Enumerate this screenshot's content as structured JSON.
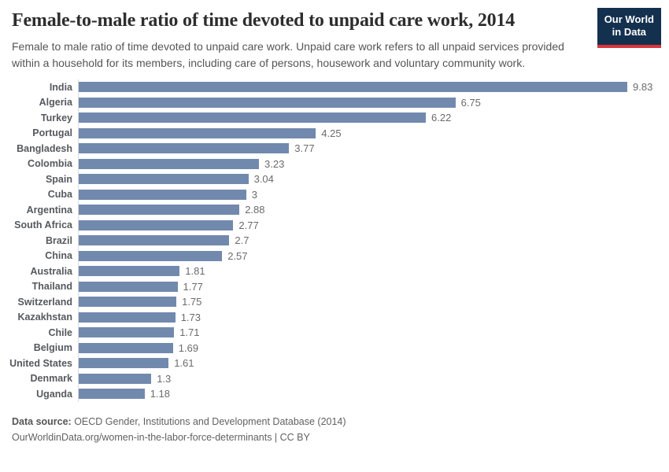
{
  "header": {
    "title": "Female-to-male ratio of time devoted to unpaid care work, 2014",
    "subtitle": "Female to male ratio of time devoted to unpaid care work. Unpaid care work refers to all unpaid services provided within a household for its members, including care of persons, housework and voluntary community work.",
    "logo": {
      "line1": "Our World",
      "line2": "in Data"
    }
  },
  "chart_data": {
    "type": "bar",
    "orientation": "horizontal",
    "title": "Female-to-male ratio of time devoted to unpaid care work, 2014",
    "categories": [
      "India",
      "Algeria",
      "Turkey",
      "Portugal",
      "Bangladesh",
      "Colombia",
      "Spain",
      "Cuba",
      "Argentina",
      "South Africa",
      "Brazil",
      "China",
      "Australia",
      "Thailand",
      "Switzerland",
      "Kazakhstan",
      "Chile",
      "Belgium",
      "United States",
      "Denmark",
      "Uganda"
    ],
    "values": [
      9.83,
      6.75,
      6.22,
      4.25,
      3.77,
      3.23,
      3.04,
      3,
      2.88,
      2.77,
      2.7,
      2.57,
      1.81,
      1.77,
      1.75,
      1.73,
      1.71,
      1.69,
      1.61,
      1.3,
      1.18
    ],
    "value_labels": [
      "9.83",
      "6.75",
      "6.22",
      "4.25",
      "3.77",
      "3.23",
      "3.04",
      "3",
      "2.88",
      "2.77",
      "2.7",
      "2.57",
      "1.81",
      "1.77",
      "1.75",
      "1.73",
      "1.71",
      "1.69",
      "1.61",
      "1.3",
      "1.18"
    ],
    "xlabel": "",
    "ylabel": "",
    "xlim": [
      0,
      9.83
    ],
    "grid": false,
    "legend": false,
    "bar_color": "#7289ae",
    "axis_line_color": "#dcdcdc"
  },
  "footer": {
    "source_label": "Data source:",
    "source_text": " OECD Gender, Institutions and Development Database (2014)",
    "citation": "OurWorldinData.org/women-in-the-labor-force-determinants | CC BY"
  },
  "colors": {
    "bar": "#7289ae",
    "title_text": "#2d2d2d",
    "subtitle_text": "#555555",
    "logo_background": "#14304f",
    "logo_stripe": "#d9353c"
  }
}
